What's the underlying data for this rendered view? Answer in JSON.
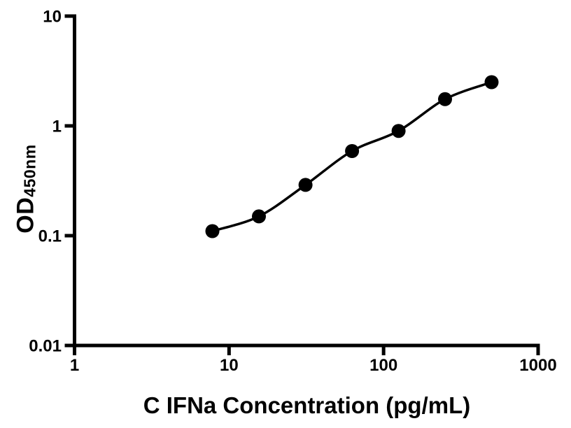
{
  "chart": {
    "xlabel": "C IFNa Concentration (pg/mL)",
    "ylabel_main": "OD",
    "ylabel_sub": "450nm"
  },
  "chart_data": {
    "type": "scatter",
    "title": "",
    "xlabel": "C IFNa Concentration (pg/mL)",
    "ylabel": "OD450nm",
    "x": [
      7.8,
      15.6,
      31.25,
      62.5,
      125,
      250,
      500
    ],
    "y": [
      0.11,
      0.15,
      0.29,
      0.59,
      0.9,
      1.75,
      2.5
    ],
    "fit_line": "smooth sigmoidal (4PL) curve through points",
    "x_scale": "log10",
    "y_scale": "log10",
    "xlim": [
      1,
      1000
    ],
    "ylim": [
      0.01,
      10
    ],
    "x_ticks": [
      "1",
      "10",
      "100",
      "1000"
    ],
    "y_ticks": [
      "0.01",
      "0.1",
      "1",
      "10"
    ],
    "grid": false,
    "legend": null,
    "marker_shape": "filled-circle",
    "marker_color": "#000000",
    "line_color": "#000000",
    "axis_color": "#000000",
    "background_color": "#ffffff"
  }
}
